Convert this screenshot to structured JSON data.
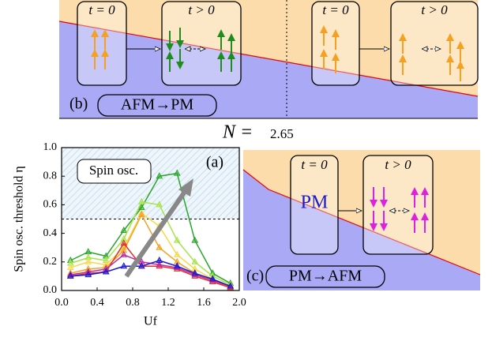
{
  "chart_data": {
    "type": "line",
    "panel_label": "(a)",
    "annotation": "Spin osc.",
    "xlabel": "Uf",
    "ylabel": "Spin osc. threshold η",
    "x": [
      0.1,
      0.3,
      0.5,
      0.7,
      0.9,
      1.1,
      1.3,
      1.5,
      1.7,
      1.9
    ],
    "series": [
      {
        "color": "#2aa52a",
        "values": [
          0.21,
          0.27,
          0.24,
          0.42,
          0.58,
          0.8,
          0.82,
          0.35,
          0.12,
          0.05
        ]
      },
      {
        "color": "#a6e34a",
        "values": [
          0.19,
          0.23,
          0.21,
          0.36,
          0.62,
          0.6,
          0.35,
          0.2,
          0.1,
          0.04
        ]
      },
      {
        "color": "#f5d94a",
        "values": [
          0.16,
          0.2,
          0.18,
          0.3,
          0.54,
          0.45,
          0.25,
          0.15,
          0.08,
          0.03
        ]
      },
      {
        "color": "#f5a020",
        "values": [
          0.12,
          0.15,
          0.16,
          0.28,
          0.53,
          0.3,
          0.2,
          0.12,
          0.07,
          0.02
        ]
      },
      {
        "color": "#e0302a",
        "values": [
          0.1,
          0.12,
          0.13,
          0.33,
          0.17,
          0.17,
          0.15,
          0.1,
          0.06,
          0.02
        ]
      },
      {
        "color": "#c02ca0",
        "values": [
          0.11,
          0.13,
          0.15,
          0.25,
          0.2,
          0.18,
          0.16,
          0.11,
          0.07,
          0.03
        ]
      },
      {
        "color": "#1a1ad0",
        "values": [
          0.1,
          0.11,
          0.13,
          0.17,
          0.17,
          0.21,
          0.17,
          0.12,
          0.08,
          0.03
        ]
      }
    ],
    "hline": 0.5,
    "xlim": [
      0,
      2
    ],
    "xticks": [
      {
        "value": 0,
        "label": "0.0"
      },
      0.4,
      0.8,
      1.2,
      1.6,
      {
        "value": 2,
        "label": "2.0"
      }
    ],
    "ylim": [
      0,
      1
    ],
    "yticks": [
      {
        "value": 0,
        "label": "0.0"
      },
      0.2,
      0.4,
      0.6,
      0.8,
      {
        "value": 1,
        "label": "1.0"
      }
    ]
  },
  "diagrams": {
    "b": {
      "label": "(b)",
      "transition": "AFM→PM",
      "boxes": [
        "t = 0",
        "t > 0",
        "t = 0",
        "t > 0"
      ]
    },
    "n_label": "N =",
    "n_value": "2.65",
    "c": {
      "label": "(c)",
      "transition": "PM→AFM",
      "boxes": [
        "t = 0",
        "t > 0"
      ],
      "phase": "PM"
    }
  }
}
